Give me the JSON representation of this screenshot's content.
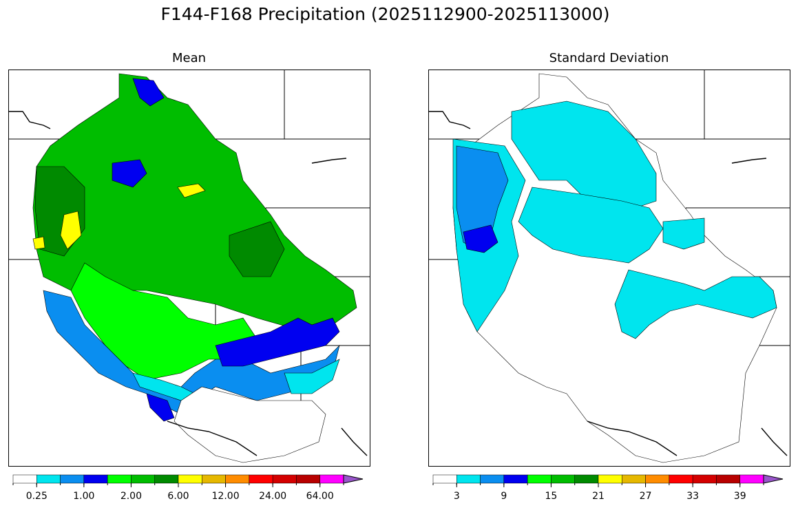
{
  "title": "F144-F168 Precipitation (2025112900-2025113000)",
  "panels": [
    {
      "name": "mean",
      "title": "Mean",
      "colorbar": {
        "colors": [
          "#ffffff",
          "#00e5ee",
          "#0a8ef0",
          "#0000f0",
          "#00ff00",
          "#00bd00",
          "#008a00",
          "#ffff00",
          "#e6b800",
          "#ff8c00",
          "#ff0000",
          "#d40000",
          "#b80000",
          "#ff00ff",
          "#9955cc"
        ],
        "labels": [
          "0.25",
          "1.00",
          "2.00",
          "6.00",
          "12.00",
          "24.00",
          "64.00"
        ]
      },
      "map_legend_colors": {
        "water_outline": "#000000"
      }
    },
    {
      "name": "standard-deviation",
      "title": "Standard Deviation",
      "colorbar": {
        "colors": [
          "#ffffff",
          "#00e5ee",
          "#0a8ef0",
          "#0000f0",
          "#00ff00",
          "#00bd00",
          "#008a00",
          "#ffff00",
          "#e6b800",
          "#ff8c00",
          "#ff0000",
          "#d40000",
          "#b80000",
          "#ff00ff",
          "#9955cc"
        ],
        "labels": [
          "3",
          "9",
          "15",
          "21",
          "27",
          "33",
          "39"
        ]
      }
    }
  ]
}
